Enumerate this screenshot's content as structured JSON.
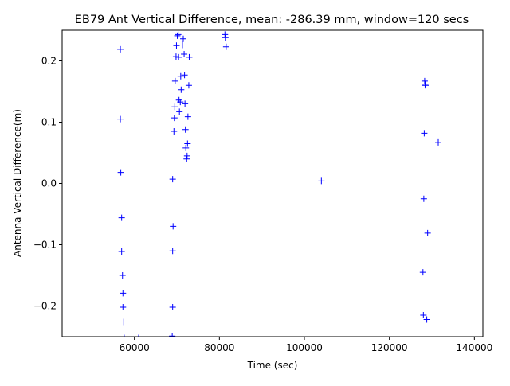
{
  "chart_data": {
    "type": "scatter",
    "title": "EB79 Ant Vertical Difference, mean: -286.39 mm, window=120 secs",
    "xlabel": "Time (sec)",
    "ylabel": "Antenna Vertical Difference(m)",
    "xlim": [
      43000,
      142000
    ],
    "ylim": [
      -0.25,
      0.25
    ],
    "xticks": [
      60000,
      80000,
      100000,
      120000,
      140000
    ],
    "xtick_labels": [
      "60000",
      "80000",
      "100000",
      "120000",
      "140000"
    ],
    "yticks": [
      -0.2,
      -0.1,
      0.0,
      0.1,
      0.2
    ],
    "ytick_labels": [
      "−0.2",
      "−0.1",
      "0.0",
      "0.1",
      "0.2"
    ],
    "marker": "+",
    "color": "#0000ff",
    "grid": false,
    "series": [
      {
        "points": [
          [
            56700,
            0.219
          ],
          [
            56700,
            0.105
          ],
          [
            56800,
            0.018
          ],
          [
            57000,
            -0.056
          ],
          [
            57000,
            -0.111
          ],
          [
            57200,
            -0.15
          ],
          [
            57300,
            -0.179
          ],
          [
            57300,
            -0.202
          ],
          [
            57500,
            -0.226
          ],
          [
            57600,
            -0.252
          ],
          [
            61000,
            -0.252
          ],
          [
            69000,
            0.007
          ],
          [
            69100,
            -0.07
          ],
          [
            69000,
            -0.11
          ],
          [
            69000,
            -0.202
          ],
          [
            68900,
            -0.249
          ],
          [
            69300,
            0.085
          ],
          [
            69400,
            0.107
          ],
          [
            69500,
            0.125
          ],
          [
            69600,
            0.167
          ],
          [
            69800,
            0.207
          ],
          [
            69900,
            0.225
          ],
          [
            70100,
            0.241
          ],
          [
            70300,
            0.243
          ],
          [
            70400,
            0.206
          ],
          [
            70500,
            0.136
          ],
          [
            70600,
            0.117
          ],
          [
            70800,
            0.133
          ],
          [
            70900,
            0.175
          ],
          [
            71000,
            0.153
          ],
          [
            71300,
            0.226
          ],
          [
            71500,
            0.236
          ],
          [
            71700,
            0.211
          ],
          [
            71800,
            0.177
          ],
          [
            71900,
            0.13
          ],
          [
            72000,
            0.088
          ],
          [
            72100,
            0.058
          ],
          [
            72300,
            0.04
          ],
          [
            72400,
            0.045
          ],
          [
            72500,
            0.065
          ],
          [
            72600,
            0.109
          ],
          [
            72800,
            0.16
          ],
          [
            72900,
            0.206
          ],
          [
            81300,
            0.243
          ],
          [
            81400,
            0.238
          ],
          [
            81600,
            0.223
          ],
          [
            104000,
            0.004
          ],
          [
            127900,
            -0.145
          ],
          [
            128000,
            -0.215
          ],
          [
            128100,
            -0.025
          ],
          [
            128200,
            0.082
          ],
          [
            128300,
            0.167
          ],
          [
            128400,
            0.162
          ],
          [
            128500,
            0.16
          ],
          [
            128800,
            -0.222
          ],
          [
            129000,
            -0.081
          ],
          [
            131500,
            0.067
          ]
        ]
      }
    ]
  }
}
